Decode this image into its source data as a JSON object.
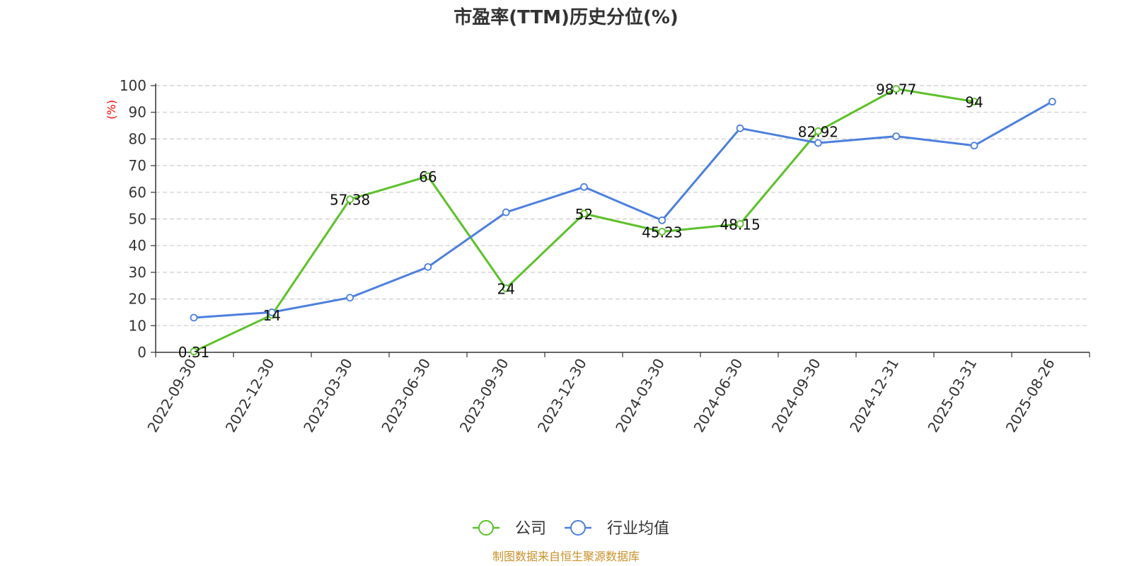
{
  "chart_data": {
    "type": "line",
    "title": "市盈率(TTM)历史分位(%)",
    "ylabel": "(%)",
    "ylim": [
      0,
      100
    ],
    "ytick_values": [
      0,
      10,
      20,
      30,
      40,
      50,
      60,
      70,
      80,
      90,
      100
    ],
    "categories": [
      "2022-09-30",
      "2022-12-30",
      "2023-03-30",
      "2023-06-30",
      "2023-09-30",
      "2023-12-30",
      "2024-03-30",
      "2024-06-30",
      "2024-09-30",
      "2024-12-31",
      "2025-03-31",
      "2025-08-26"
    ],
    "grid": true,
    "legend_position": "bottom",
    "series": [
      {
        "name": "公司",
        "color": "#5cc12a",
        "values": [
          0.31,
          14,
          57.38,
          66,
          24,
          52,
          45.23,
          48.15,
          82.92,
          98.77,
          94,
          null
        ],
        "data_labels": [
          "0.31",
          "14",
          "57.38",
          "66",
          "24",
          "52",
          "45.23",
          "48.15",
          "82.92",
          "98.77",
          "94",
          ""
        ]
      },
      {
        "name": "行业均值",
        "color": "#4c80dd",
        "values": [
          13,
          15,
          20.5,
          32,
          52.5,
          62,
          49.5,
          84,
          78.5,
          81,
          77.5,
          94
        ]
      }
    ],
    "source": "制图数据来自恒生聚源数据库"
  }
}
